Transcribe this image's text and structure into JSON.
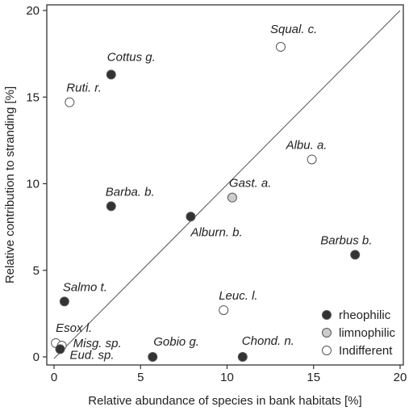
{
  "chart_data": {
    "type": "scatter",
    "title": "",
    "xlabel": "Relative abundance of species in bank habitats [%]",
    "ylabel": "Relative contribution to stranding [%]",
    "xlim": [
      0,
      20
    ],
    "ylim": [
      0,
      20
    ],
    "xticks": [
      "0",
      "5",
      "10",
      "15",
      "20"
    ],
    "yticks": [
      "0",
      "5",
      "10",
      "15",
      "20"
    ],
    "reference_line": "y = x",
    "legend_position": "bottom-right",
    "categories": [
      {
        "name": "rheophilic",
        "color": "#333333"
      },
      {
        "name": "limnophilic",
        "color": "#cccccc"
      },
      {
        "name": "Indifferent",
        "color": "#ffffff"
      }
    ],
    "points": [
      {
        "label": "Squal. c.",
        "x": 13.1,
        "y": 17.9,
        "category": "Indifferent"
      },
      {
        "label": "Cottus g.",
        "x": 3.3,
        "y": 16.3,
        "category": "rheophilic"
      },
      {
        "label": "Ruti. r.",
        "x": 0.9,
        "y": 14.7,
        "category": "Indifferent"
      },
      {
        "label": "Albu. a.",
        "x": 14.9,
        "y": 11.4,
        "category": "Indifferent"
      },
      {
        "label": "Gast. a.",
        "x": 10.3,
        "y": 9.2,
        "category": "limnophilic"
      },
      {
        "label": "Barba. b.",
        "x": 3.3,
        "y": 8.7,
        "category": "rheophilic"
      },
      {
        "label": "Alburn. b.",
        "x": 7.9,
        "y": 8.1,
        "category": "rheophilic"
      },
      {
        "label": "Barbus b.",
        "x": 17.4,
        "y": 5.9,
        "category": "rheophilic"
      },
      {
        "label": "Salmo t.",
        "x": 0.6,
        "y": 3.2,
        "category": "rheophilic"
      },
      {
        "label": "Leuc. l.",
        "x": 9.8,
        "y": 2.7,
        "category": "Indifferent"
      },
      {
        "label": "Esox l.",
        "x": 0.1,
        "y": 0.8,
        "category": "Indifferent"
      },
      {
        "label": "Misg. sp.",
        "x": 0.45,
        "y": 0.65,
        "category": "Indifferent"
      },
      {
        "label": "Eud. sp.",
        "x": 0.35,
        "y": 0.45,
        "category": "rheophilic"
      },
      {
        "label": "Gobio g.",
        "x": 5.7,
        "y": 0.0,
        "category": "rheophilic"
      },
      {
        "label": "Chond. n.",
        "x": 10.9,
        "y": 0.0,
        "category": "rheophilic"
      }
    ]
  }
}
